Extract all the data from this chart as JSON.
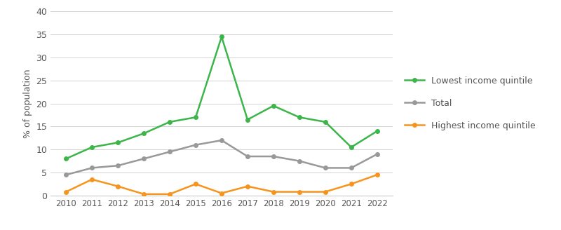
{
  "years": [
    2010,
    2011,
    2012,
    2013,
    2014,
    2015,
    2016,
    2017,
    2018,
    2019,
    2020,
    2021,
    2022
  ],
  "lowest_income": [
    8.0,
    10.5,
    11.5,
    13.5,
    16.0,
    17.0,
    34.5,
    16.5,
    19.5,
    17.0,
    16.0,
    10.5,
    14.0
  ],
  "total": [
    4.5,
    6.0,
    6.5,
    8.0,
    9.5,
    11.0,
    12.0,
    8.5,
    8.5,
    7.5,
    6.0,
    6.0,
    9.0
  ],
  "highest_income": [
    0.8,
    3.5,
    2.0,
    0.3,
    0.3,
    2.5,
    0.5,
    2.0,
    0.8,
    0.8,
    0.8,
    2.5,
    4.5
  ],
  "lowest_color": "#3cb54a",
  "total_color": "#999999",
  "highest_color": "#f7941d",
  "ylabel": "% of population",
  "ylim": [
    0,
    40
  ],
  "yticks": [
    0,
    5,
    10,
    15,
    20,
    25,
    30,
    35,
    40
  ],
  "legend_labels": [
    "Lowest income quintile",
    "Total",
    "Highest income quintile"
  ],
  "background_color": "#ffffff",
  "grid_color": "#cccccc"
}
